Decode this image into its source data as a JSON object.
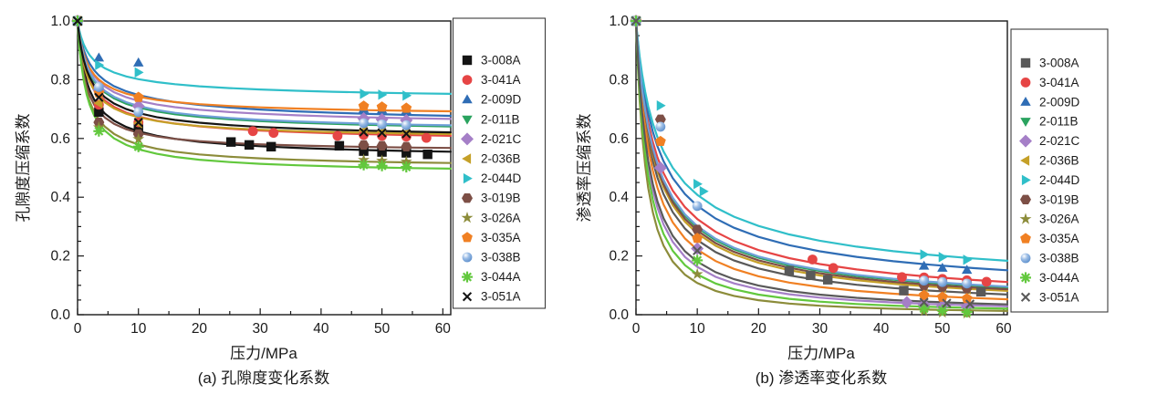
{
  "chart_data": [
    {
      "type": "scatter",
      "title": "(a) 孔隙度变化系数",
      "xlabel": "压力/MPa",
      "ylabel": "孔隙度压缩系数",
      "xlim": [
        0,
        61.3
      ],
      "ylim": [
        0,
        1.0
      ],
      "xticks": [
        0,
        10,
        20,
        30,
        40,
        50,
        60
      ],
      "yticks": [
        0.0,
        0.2,
        0.4,
        0.6,
        0.8,
        1.0
      ],
      "x_minor_step": 5,
      "y_minor_step": 0.05,
      "grid": false,
      "legend_position": "right-box",
      "curve_model": "y = c + (1-c)*(1+x/a)^(-n)",
      "series": [
        {
          "name": "3-008A",
          "marker": "square",
          "color": "#141414",
          "fit": {
            "c": 0.525,
            "a": 1.2,
            "n": 0.7
          },
          "points": [
            [
              0,
              1
            ],
            [
              3.5,
              0.69
            ],
            [
              10,
              0.635
            ],
            [
              25.2,
              0.588
            ],
            [
              28.2,
              0.578
            ],
            [
              31.8,
              0.572
            ],
            [
              43,
              0.575
            ],
            [
              47,
              0.557
            ],
            [
              50,
              0.554
            ],
            [
              54,
              0.551
            ],
            [
              57.5,
              0.546
            ]
          ]
        },
        {
          "name": "3-041A",
          "marker": "circle",
          "color": "#e64545",
          "fit": {
            "c": 0.578,
            "a": 1.2,
            "n": 0.66
          },
          "points": [
            [
              0,
              1
            ],
            [
              3.5,
              0.715
            ],
            [
              10,
              0.655
            ],
            [
              28.8,
              0.625
            ],
            [
              32.2,
              0.619
            ],
            [
              42.7,
              0.609
            ],
            [
              47,
              0.612
            ],
            [
              50,
              0.609
            ],
            [
              54,
              0.606
            ],
            [
              57.3,
              0.602
            ]
          ]
        },
        {
          "name": "2-009D",
          "marker": "triangle-up",
          "color": "#2f6db5",
          "fit": {
            "c": 0.625,
            "a": 1.2,
            "n": 0.5
          },
          "points": [
            [
              0,
              1
            ],
            [
              3.5,
              0.875
            ],
            [
              10,
              0.858
            ],
            [
              47,
              0.7
            ],
            [
              50,
              0.698
            ],
            [
              54,
              0.695
            ]
          ]
        },
        {
          "name": "2-011B",
          "marker": "triangle-down",
          "color": "#2aa35f",
          "fit": {
            "c": 0.607,
            "a": 1.2,
            "n": 0.62
          },
          "points": [
            [
              0,
              1
            ],
            [
              3.5,
              0.758
            ],
            [
              10,
              0.7
            ],
            [
              47,
              0.652
            ],
            [
              50,
              0.649
            ],
            [
              54,
              0.646
            ]
          ]
        },
        {
          "name": "2-021C",
          "marker": "diamond",
          "color": "#a57fc7",
          "fit": {
            "c": 0.632,
            "a": 1.2,
            "n": 0.6
          },
          "points": [
            [
              0,
              1
            ],
            [
              3.5,
              0.765
            ],
            [
              10,
              0.71
            ],
            [
              47,
              0.668
            ],
            [
              50,
              0.665
            ],
            [
              54,
              0.662
            ]
          ]
        },
        {
          "name": "2-036B",
          "marker": "triangle-left",
          "color": "#c5a028",
          "fit": {
            "c": 0.592,
            "a": 1.2,
            "n": 0.73
          },
          "points": [
            [
              0,
              1
            ],
            [
              3.5,
              0.72
            ],
            [
              10,
              0.652
            ],
            [
              47,
              0.627
            ],
            [
              50,
              0.623
            ],
            [
              54,
              0.62
            ]
          ]
        },
        {
          "name": "2-044D",
          "marker": "triangle-right",
          "color": "#30bfc9",
          "fit": {
            "c": 0.72,
            "a": 1.2,
            "n": 0.55
          },
          "points": [
            [
              0,
              1
            ],
            [
              3.5,
              0.85
            ],
            [
              10,
              0.825
            ],
            [
              47,
              0.752
            ],
            [
              50,
              0.749
            ],
            [
              54,
              0.746
            ]
          ]
        },
        {
          "name": "3-019B",
          "marker": "hexagon",
          "color": "#7d4f46",
          "fit": {
            "c": 0.552,
            "a": 1.2,
            "n": 0.85
          },
          "points": [
            [
              0,
              1
            ],
            [
              3.5,
              0.655
            ],
            [
              10,
              0.615
            ],
            [
              47,
              0.578
            ],
            [
              50,
              0.575
            ],
            [
              54,
              0.572
            ]
          ]
        },
        {
          "name": "3-026A",
          "marker": "star",
          "color": "#8c8c3a",
          "fit": {
            "c": 0.495,
            "a": 1.2,
            "n": 0.8
          },
          "points": [
            [
              0,
              1
            ],
            [
              3.5,
              0.638
            ],
            [
              10,
              0.598
            ],
            [
              47,
              0.527
            ],
            [
              50,
              0.524
            ],
            [
              54,
              0.521
            ]
          ]
        },
        {
          "name": "3-035A",
          "marker": "pentagon",
          "color": "#f08023",
          "fit": {
            "c": 0.67,
            "a": 1.2,
            "n": 0.68
          },
          "points": [
            [
              0,
              1
            ],
            [
              3.5,
              0.755
            ],
            [
              10,
              0.74
            ],
            [
              47,
              0.71
            ],
            [
              50,
              0.707
            ],
            [
              54,
              0.703
            ]
          ]
        },
        {
          "name": "3-038B",
          "marker": "ball",
          "color": "#6f9fd8",
          "fit": {
            "c": 0.608,
            "a": 1.2,
            "n": 0.6
          },
          "points": [
            [
              0,
              1
            ],
            [
              3.5,
              0.775
            ],
            [
              10,
              0.69
            ],
            [
              47,
              0.652
            ],
            [
              50,
              0.648
            ],
            [
              54,
              0.645
            ]
          ]
        },
        {
          "name": "3-044A",
          "marker": "asterisk",
          "color": "#62c83d",
          "fit": {
            "c": 0.475,
            "a": 1.2,
            "n": 0.8
          },
          "points": [
            [
              0,
              1
            ],
            [
              3.5,
              0.625
            ],
            [
              10,
              0.572
            ],
            [
              47,
              0.51
            ],
            [
              50,
              0.507
            ],
            [
              54,
              0.503
            ]
          ]
        },
        {
          "name": "3-051A",
          "marker": "x",
          "color": "#141414",
          "fit": {
            "c": 0.588,
            "a": 1.2,
            "n": 0.64
          },
          "points": [
            [
              0,
              1
            ],
            [
              3.5,
              0.74
            ],
            [
              10,
              0.655
            ],
            [
              47,
              0.622
            ],
            [
              50,
              0.619
            ],
            [
              54,
              0.616
            ]
          ]
        }
      ]
    },
    {
      "type": "scatter",
      "title": "(b) 渗透率变化系数",
      "xlabel": "压力/MPa",
      "ylabel": "渗透率压缩系数",
      "xlim": [
        0,
        60.6
      ],
      "ylim": [
        0,
        1.0
      ],
      "xticks": [
        0,
        10,
        20,
        30,
        40,
        50,
        60
      ],
      "yticks": [
        0.0,
        0.2,
        0.4,
        0.6,
        0.8,
        1.0
      ],
      "x_minor_step": 5,
      "y_minor_step": 0.05,
      "grid": false,
      "legend_position": "right-box",
      "curve_model": "y = c + (1-c)*(1+x/a)^(-n)",
      "series": [
        {
          "name": "3-008A",
          "marker": "square",
          "color": "#595959",
          "fit": {
            "c": 0,
            "a": 2.2,
            "n": 0.8
          },
          "points": [
            [
              0,
              1
            ],
            [
              25,
              0.15
            ],
            [
              28.5,
              0.134
            ],
            [
              31.3,
              0.119
            ],
            [
              43.7,
              0.082
            ],
            [
              56.3,
              0.078
            ]
          ]
        },
        {
          "name": "3-041A",
          "marker": "circle",
          "color": "#e64545",
          "fit": {
            "c": 0,
            "a": 2.2,
            "n": 0.655
          },
          "points": [
            [
              0,
              1
            ],
            [
              28.8,
              0.188
            ],
            [
              32.2,
              0.159
            ],
            [
              43.4,
              0.128
            ],
            [
              47,
              0.127
            ],
            [
              50,
              0.122
            ],
            [
              54,
              0.117
            ],
            [
              57.2,
              0.112
            ]
          ]
        },
        {
          "name": "2-009D",
          "marker": "triangle-up",
          "color": "#2f6db5",
          "fit": {
            "c": 0.02,
            "a": 2.2,
            "n": 0.6
          },
          "points": [
            [
              0,
              1
            ],
            [
              47,
              0.166
            ],
            [
              50,
              0.159
            ],
            [
              54,
              0.152
            ]
          ]
        },
        {
          "name": "2-011B",
          "marker": "triangle-down",
          "color": "#2aa35f",
          "fit": {
            "c": 0,
            "a": 2.2,
            "n": 0.71
          },
          "points": [
            [
              0,
              1
            ],
            [
              47,
              0.108
            ],
            [
              50,
              0.103
            ],
            [
              54,
              0.098
            ]
          ]
        },
        {
          "name": "2-021C",
          "marker": "diamond",
          "color": "#a57fc7",
          "fit": {
            "c": 0,
            "a": 2.2,
            "n": 1.06
          },
          "points": [
            [
              0,
              1
            ],
            [
              4,
              0.5
            ],
            [
              10,
              0.225
            ],
            [
              44.2,
              0.042
            ],
            [
              47,
              0.034
            ],
            [
              50,
              0.029
            ],
            [
              54,
              0.026
            ]
          ]
        },
        {
          "name": "2-036B",
          "marker": "triangle-left",
          "color": "#c5a028",
          "fit": {
            "c": 0,
            "a": 2.2,
            "n": 0.75
          },
          "points": [
            [
              0,
              1
            ],
            [
              47,
              0.096
            ],
            [
              50,
              0.091
            ],
            [
              54,
              0.086
            ]
          ]
        },
        {
          "name": "2-044D",
          "marker": "triangle-right",
          "color": "#30bfc9",
          "fit": {
            "c": 0.03,
            "a": 2.2,
            "n": 0.55
          },
          "points": [
            [
              0,
              1
            ],
            [
              4,
              0.712
            ],
            [
              10,
              0.445
            ],
            [
              11,
              0.42
            ],
            [
              47,
              0.205
            ],
            [
              50,
              0.196
            ],
            [
              54,
              0.187
            ]
          ]
        },
        {
          "name": "3-019B",
          "marker": "hexagon",
          "color": "#7d4f46",
          "fit": {
            "c": 0,
            "a": 2.2,
            "n": 0.73
          },
          "points": [
            [
              0,
              1
            ],
            [
              4,
              0.665
            ],
            [
              10,
              0.29
            ],
            [
              47,
              0.1
            ],
            [
              50,
              0.095
            ],
            [
              54,
              0.09
            ]
          ]
        },
        {
          "name": "3-026A",
          "marker": "star",
          "color": "#8c8c3a",
          "fit": {
            "c": 0,
            "a": 2.2,
            "n": 1.3
          },
          "points": [
            [
              0,
              1
            ],
            [
              10,
              0.138
            ],
            [
              47,
              0.012
            ],
            [
              50,
              0.007
            ],
            [
              54,
              0.004
            ]
          ]
        },
        {
          "name": "3-035A",
          "marker": "pentagon",
          "color": "#f08023",
          "fit": {
            "c": 0,
            "a": 2.2,
            "n": 0.88
          },
          "points": [
            [
              0,
              1
            ],
            [
              4,
              0.59
            ],
            [
              10,
              0.26
            ],
            [
              47,
              0.066
            ],
            [
              50,
              0.06
            ],
            [
              54,
              0.055
            ]
          ]
        },
        {
          "name": "3-038B",
          "marker": "ball",
          "color": "#6f9fd8",
          "fit": {
            "c": 0,
            "a": 2.2,
            "n": 0.7
          },
          "points": [
            [
              0,
              1
            ],
            [
              4,
              0.64
            ],
            [
              10,
              0.37
            ],
            [
              47,
              0.116
            ],
            [
              50,
              0.111
            ],
            [
              54,
              0.106
            ]
          ]
        },
        {
          "name": "3-044A",
          "marker": "asterisk",
          "color": "#62c83d",
          "fit": {
            "c": 0,
            "a": 2.2,
            "n": 1.16
          },
          "points": [
            [
              0,
              1
            ],
            [
              10,
              0.185
            ],
            [
              47,
              0.021
            ],
            [
              50,
              0.015
            ],
            [
              54,
              0.009
            ]
          ]
        },
        {
          "name": "3-051A",
          "marker": "x",
          "color": "#595959",
          "fit": {
            "c": 0,
            "a": 2.2,
            "n": 1.0
          },
          "points": [
            [
              0,
              1
            ],
            [
              10,
              0.218
            ],
            [
              47,
              0.042
            ],
            [
              50.7,
              0.039
            ],
            [
              54.5,
              0.036
            ]
          ]
        }
      ]
    }
  ]
}
